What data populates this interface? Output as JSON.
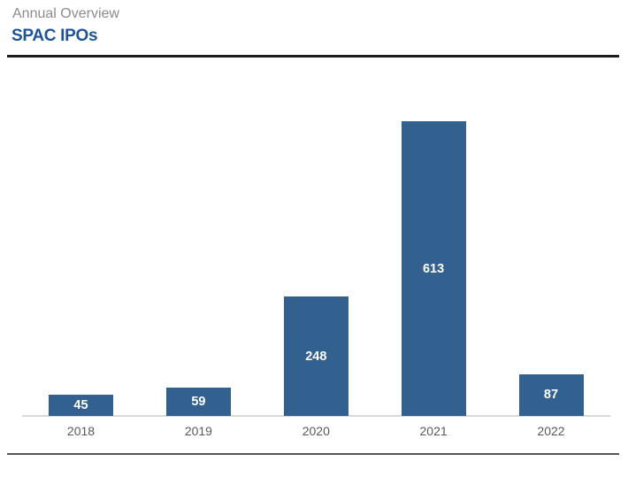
{
  "header": {
    "subtitle": "Annual Overview",
    "title": "SPAC IPOs"
  },
  "chart_data": {
    "type": "bar",
    "title": "SPAC IPOs",
    "subtitle": "Annual Overview",
    "categories": [
      "2018",
      "2019",
      "2020",
      "2021",
      "2022"
    ],
    "values": [
      45,
      59,
      248,
      613,
      87
    ],
    "xlabel": "",
    "ylabel": "",
    "ylim": [
      0,
      700
    ],
    "grid": false,
    "legend": false,
    "value_labels": "inside-center"
  },
  "colors": {
    "bar_fill": "#33618F",
    "value_label": "#FFFFFF",
    "tick_label": "#595959",
    "axis_line": "#D9D9D9",
    "title": "#1F5596",
    "subtitle": "#8C8C8C",
    "top_rule": "#1C1C1C",
    "bottom_rule": "#555555"
  }
}
